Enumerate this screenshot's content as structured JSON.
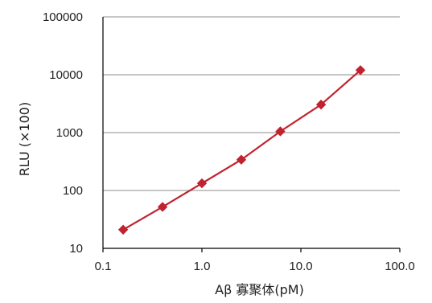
{
  "chart_data": {
    "type": "line",
    "title": "",
    "xlabel": "Aβ 寡聚体(pM)",
    "ylabel": "RLU (×100)",
    "x_scale": "log",
    "y_scale": "log",
    "xlim": [
      0.1,
      100.0
    ],
    "ylim": [
      10,
      100000
    ],
    "x_tick_labels": [
      "0.1",
      "1.0",
      "10.0",
      "100.0"
    ],
    "x_tick_values": [
      0.1,
      1.0,
      10.0,
      100.0
    ],
    "y_tick_labels": [
      "10",
      "100",
      "1000",
      "10000",
      "100000"
    ],
    "y_tick_values": [
      10,
      100,
      1000,
      10000,
      100000
    ],
    "grid": "horizontal",
    "legend": "none",
    "series": [
      {
        "marker": "diamond",
        "color": "#c0232f",
        "points": [
          {
            "x": 0.16,
            "y": 21
          },
          {
            "x": 0.4,
            "y": 52
          },
          {
            "x": 1.0,
            "y": 133
          },
          {
            "x": 2.5,
            "y": 340
          },
          {
            "x": 6.2,
            "y": 1050
          },
          {
            "x": 16,
            "y": 3050
          },
          {
            "x": 40,
            "y": 12000
          }
        ]
      }
    ]
  }
}
